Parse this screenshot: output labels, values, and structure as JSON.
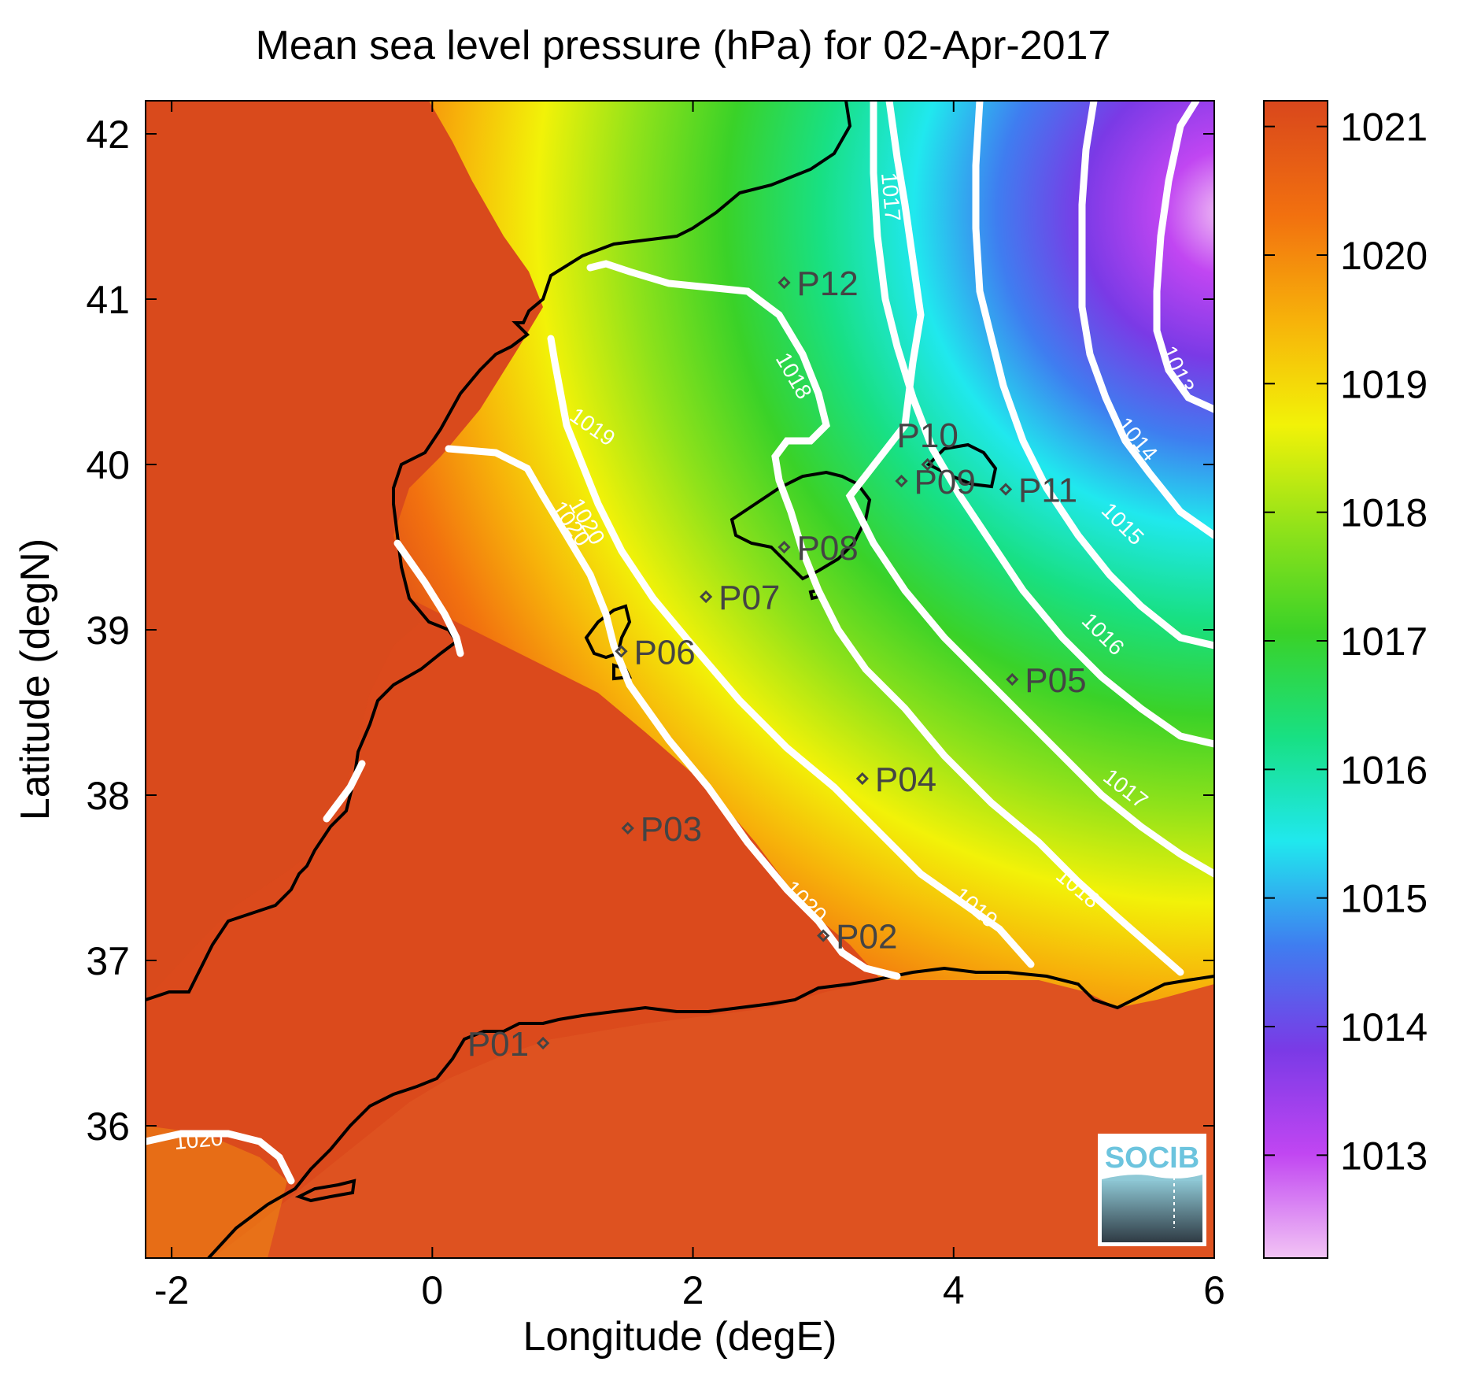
{
  "title": "Mean sea level pressure (hPa) for 02-Apr-2017",
  "xlabel": "Longitude (degE)",
  "ylabel": "Latitude (degN)",
  "xticks": [
    "-2",
    "0",
    "2",
    "4",
    "6"
  ],
  "yticks": [
    "42",
    "41",
    "40",
    "39",
    "38",
    "37",
    "36"
  ],
  "colorbar": {
    "ticks": [
      "1021",
      "1020",
      "1019",
      "1018",
      "1017",
      "1016",
      "1015",
      "1014",
      "1013"
    ],
    "range": [
      1012.2,
      1021.2
    ],
    "colormap": [
      "#f2c4f4",
      "#c146f2",
      "#7a3ae6",
      "#3f7df0",
      "#20e8ee",
      "#18e083",
      "#3ad228",
      "#90e21a",
      "#f2f208",
      "#f7b20a",
      "#f2710f",
      "#d9471c"
    ]
  },
  "contour_labels": [
    "1013",
    "1014",
    "1015",
    "1016",
    "1017",
    "1018",
    "1019",
    "1020",
    "1020",
    "1020",
    "1017",
    "1018",
    "1019",
    "1020"
  ],
  "stations": [
    {
      "name": "P01",
      "lon": 0.85,
      "lat": 36.5
    },
    {
      "name": "P02",
      "lon": 3.0,
      "lat": 37.15
    },
    {
      "name": "P03",
      "lon": 1.5,
      "lat": 37.8
    },
    {
      "name": "P04",
      "lon": 3.3,
      "lat": 38.1
    },
    {
      "name": "P05",
      "lon": 4.45,
      "lat": 38.7
    },
    {
      "name": "P06",
      "lon": 1.45,
      "lat": 38.87
    },
    {
      "name": "P07",
      "lon": 2.1,
      "lat": 39.2
    },
    {
      "name": "P08",
      "lon": 2.7,
      "lat": 39.5
    },
    {
      "name": "P09",
      "lon": 3.6,
      "lat": 39.9
    },
    {
      "name": "P10",
      "lon": 3.8,
      "lat": 40.0
    },
    {
      "name": "P11",
      "lon": 4.4,
      "lat": 39.85
    },
    {
      "name": "P12",
      "lon": 2.7,
      "lat": 41.1
    }
  ],
  "logo": "SOCIB"
}
